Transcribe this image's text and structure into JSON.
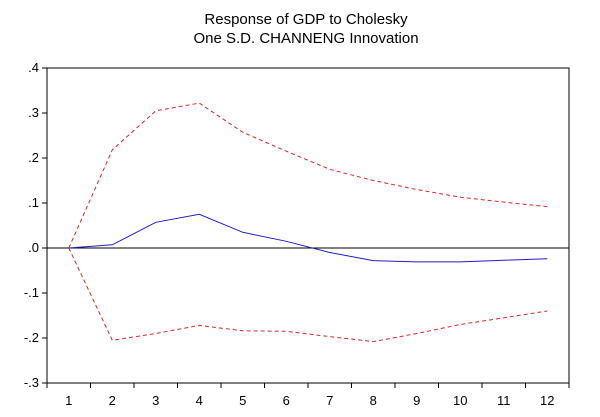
{
  "chart_data": {
    "type": "line",
    "title_lines": [
      "Response of GDP to Cholesky",
      "One S.D. CHANNENG Innovation"
    ],
    "xlabel": "",
    "ylabel": "",
    "x": [
      1,
      2,
      3,
      4,
      5,
      6,
      7,
      8,
      9,
      10,
      11,
      12
    ],
    "x_tick_labels": [
      "1",
      "2",
      "3",
      "4",
      "5",
      "6",
      "7",
      "8",
      "9",
      "10",
      "11",
      "12"
    ],
    "ylim": [
      -0.3,
      0.4
    ],
    "y_ticks": [
      0.4,
      0.3,
      0.2,
      0.1,
      0.0,
      -0.1,
      -0.2,
      -0.3
    ],
    "y_tick_labels": [
      ".4",
      ".3",
      ".2",
      ".1",
      ".0",
      "-.1",
      "-.2",
      "-.3"
    ],
    "zero_line": true,
    "grid": false,
    "legend": "none",
    "series": [
      {
        "name": "Response",
        "style": "solid",
        "color": "#1f1fbf",
        "values": [
          0.0,
          0.007,
          0.057,
          0.075,
          0.035,
          0.015,
          -0.01,
          -0.028,
          -0.031,
          -0.031,
          -0.027,
          -0.024
        ]
      },
      {
        "name": "Upper band",
        "style": "dashed",
        "color": "#cc2a2a",
        "values": [
          0.0,
          0.218,
          0.305,
          0.322,
          0.257,
          0.215,
          0.175,
          0.15,
          0.13,
          0.113,
          0.102,
          0.092
        ]
      },
      {
        "name": "Lower band",
        "style": "dashed",
        "color": "#cc2a2a",
        "values": [
          0.0,
          -0.205,
          -0.19,
          -0.172,
          -0.184,
          -0.185,
          -0.197,
          -0.208,
          -0.19,
          -0.17,
          -0.155,
          -0.14
        ]
      }
    ]
  }
}
